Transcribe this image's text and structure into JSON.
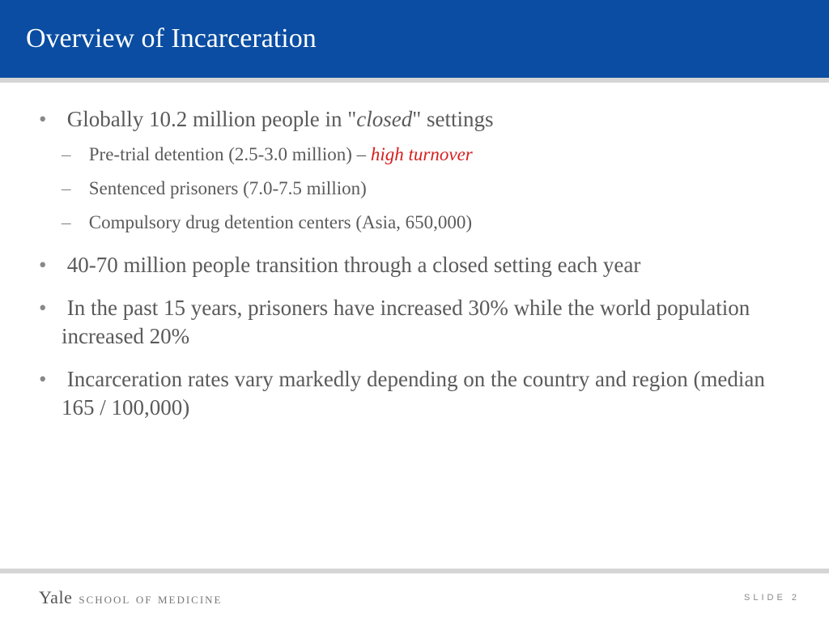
{
  "header": {
    "title": "Overview of Incarceration",
    "background_color": "#0a4da2",
    "text_color": "#ffffff",
    "underline_color": "#d5d5d5"
  },
  "content": {
    "text_color": "#5a5a5a",
    "bullets": [
      {
        "prefix": "Globally 10.2 million people in \"",
        "italic_word": "closed",
        "suffix": "\" settings",
        "sub": [
          {
            "text": "Pre-trial detention (2.5-3.0 million) – ",
            "red_italic": "high turnover"
          },
          {
            "text": "Sentenced prisoners (7.0-7.5 million)"
          },
          {
            "text": "Compulsory drug detention centers (Asia, 650,000)"
          }
        ]
      },
      {
        "text": "40-70 million people transition through a closed setting each year"
      },
      {
        "text": "In the past 15 years, prisoners have increased 30% while the world population increased 20%"
      },
      {
        "text": "Incarceration rates vary markedly depending on the country and region (median 165 / 100,000)"
      }
    ]
  },
  "footer": {
    "logo_text": "Yale",
    "school_text": "school of medicine",
    "slide_label": "SLIDE 2",
    "bar_color": "#d5d5d5"
  },
  "styling": {
    "main_fontsize": 27,
    "sub_fontsize": 23,
    "red_color": "#d42020"
  }
}
